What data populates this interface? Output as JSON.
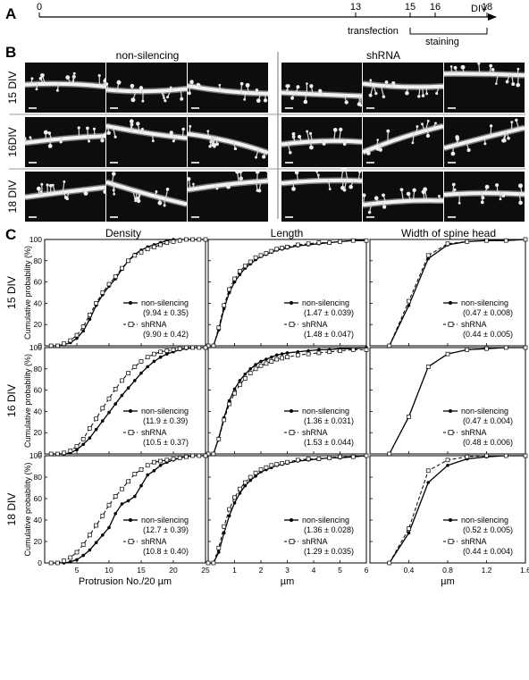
{
  "panels": {
    "a": "A",
    "b": "B",
    "c": "C"
  },
  "timeline": {
    "ticks": [
      "0",
      "13",
      "15",
      "16",
      "18"
    ],
    "unit": "DIV",
    "transfection_label": "transfection",
    "staining_label": "staining"
  },
  "micrographs": {
    "groups": [
      "non-silencing",
      "shRNA"
    ],
    "rows": [
      "15 DIV",
      "16DIV",
      "18 DIV"
    ]
  },
  "plots": {
    "columns": [
      "Density",
      "Length",
      "Width of spine head"
    ],
    "rows": [
      "15 DIV",
      "16 DIV",
      "18 DIV"
    ],
    "ylabel": "Cumulative probability (%)",
    "y_ticks": [
      "0",
      "20",
      "40",
      "60",
      "80",
      "100"
    ],
    "x_ticks": [
      [
        "5",
        "10",
        "15",
        "20",
        "25"
      ],
      [
        "1",
        "2",
        "3",
        "4",
        "5",
        "6"
      ],
      [
        "0.4",
        "0.8",
        "1.2",
        "1.6"
      ]
    ],
    "xlabels": [
      "Protrusion No./20 µm",
      "µm",
      "µm"
    ],
    "legend_names": [
      "non-silencing",
      "shRNA"
    ],
    "stats": [
      [
        [
          "(9.94 ± 0.35)",
          "(9.90 ± 0.42)"
        ],
        [
          "(1.47 ± 0.039)",
          "(1.48 ± 0.047)"
        ],
        [
          "(0.47 ± 0.008)",
          "(0.44 ± 0.005)"
        ]
      ],
      [
        [
          "(11.9 ± 0.39)",
          "(10.5 ± 0.37)"
        ],
        [
          "(1.36 ± 0.031)",
          "(1.53 ± 0.044)"
        ],
        [
          "(0.47 ± 0.004)",
          "(0.48 ± 0.006)"
        ]
      ],
      [
        [
          "(12.7 ± 0.39)",
          "(10.8 ± 0.40)"
        ],
        [
          "(1.36 ± 0.028)",
          "(1.29 ± 0.035)"
        ],
        [
          "(0.52 ± 0.005)",
          "(0.44 ± 0.004)"
        ]
      ]
    ]
  },
  "chart_data": [
    {
      "type": "line",
      "title": "Density",
      "row": "15 DIV",
      "xlabel": "",
      "ylabel": "Cumulative probability (%)",
      "xlim": [
        0,
        25
      ],
      "ylim": [
        0,
        100
      ],
      "series": [
        {
          "name": "non-silencing",
          "x": [
            1,
            2,
            3,
            4,
            5,
            6,
            7,
            8,
            9,
            10,
            11,
            12,
            13,
            14,
            15,
            16,
            17,
            18,
            19,
            20,
            21,
            22,
            23,
            24,
            25
          ],
          "y": [
            0,
            0,
            1,
            3,
            7,
            14,
            25,
            38,
            48,
            56,
            63,
            72,
            80,
            86,
            90,
            93,
            95,
            97,
            99,
            100,
            100,
            100,
            100,
            100,
            100
          ]
        },
        {
          "name": "shRNA",
          "x": [
            1,
            2,
            3,
            4,
            5,
            6,
            7,
            8,
            9,
            10,
            11,
            12,
            13,
            14,
            15,
            16,
            17,
            18,
            19,
            20,
            21,
            22,
            23,
            24,
            25
          ],
          "y": [
            0,
            0,
            2,
            5,
            10,
            18,
            29,
            40,
            50,
            58,
            65,
            73,
            80,
            85,
            88,
            91,
            93,
            95,
            97,
            98,
            99,
            100,
            100,
            100,
            100
          ]
        }
      ]
    },
    {
      "type": "line",
      "title": "Length",
      "row": "15 DIV",
      "xlabel": "",
      "ylabel": "",
      "xlim": [
        0,
        6
      ],
      "ylim": [
        0,
        100
      ],
      "series": [
        {
          "name": "non-silencing",
          "x": [
            0,
            0.2,
            0.4,
            0.6,
            0.8,
            1,
            1.2,
            1.4,
            1.6,
            1.8,
            2,
            2.2,
            2.4,
            2.6,
            2.8,
            3,
            3.4,
            3.8,
            4.2,
            4.6,
            5,
            5.5,
            6
          ],
          "y": [
            0,
            0,
            15,
            35,
            50,
            60,
            67,
            73,
            77,
            81,
            84,
            86,
            88,
            90,
            91,
            92,
            94,
            95,
            96,
            97,
            98,
            99,
            99
          ]
        },
        {
          "name": "shRNA",
          "x": [
            0,
            0.2,
            0.4,
            0.6,
            0.8,
            1,
            1.2,
            1.4,
            1.6,
            1.8,
            2,
            2.2,
            2.4,
            2.6,
            2.8,
            3,
            3.4,
            3.8,
            4.2,
            4.6,
            5,
            5.5,
            6
          ],
          "y": [
            0,
            0,
            17,
            38,
            53,
            63,
            70,
            75,
            79,
            83,
            85,
            87,
            89,
            91,
            92,
            93,
            95,
            96,
            97,
            97,
            98,
            99,
            99
          ]
        }
      ]
    },
    {
      "type": "line",
      "title": "Width of spine head",
      "row": "15 DIV",
      "xlabel": "",
      "ylabel": "",
      "xlim": [
        0,
        1.6
      ],
      "ylim": [
        0,
        100
      ],
      "series": [
        {
          "name": "non-silencing",
          "x": [
            0.2,
            0.4,
            0.6,
            0.8,
            1.0,
            1.2,
            1.4,
            1.6
          ],
          "y": [
            0,
            38,
            82,
            95,
            98,
            99,
            99,
            100
          ]
        },
        {
          "name": "shRNA",
          "x": [
            0.2,
            0.4,
            0.6,
            0.8,
            1.0,
            1.2,
            1.4,
            1.6
          ],
          "y": [
            0,
            42,
            85,
            96,
            98,
            99,
            99,
            100
          ]
        }
      ]
    },
    {
      "type": "line",
      "title": "",
      "row": "16 DIV",
      "xlabel": "",
      "ylabel": "Cumulative probability (%)",
      "xlim": [
        0,
        25
      ],
      "ylim": [
        0,
        100
      ],
      "series": [
        {
          "name": "non-silencing",
          "x": [
            1,
            2,
            3,
            4,
            5,
            6,
            7,
            8,
            9,
            10,
            11,
            12,
            13,
            14,
            15,
            16,
            17,
            18,
            19,
            20,
            21,
            22,
            23,
            24,
            25
          ],
          "y": [
            0,
            0,
            0,
            1,
            4,
            9,
            15,
            23,
            31,
            39,
            47,
            55,
            62,
            69,
            76,
            82,
            87,
            91,
            94,
            96,
            98,
            99,
            100,
            100,
            100
          ]
        },
        {
          "name": "shRNA",
          "x": [
            1,
            2,
            3,
            4,
            5,
            6,
            7,
            8,
            9,
            10,
            11,
            12,
            13,
            14,
            15,
            16,
            17,
            18,
            19,
            20,
            21,
            22,
            23,
            24,
            25
          ],
          "y": [
            0,
            0,
            1,
            3,
            7,
            14,
            24,
            33,
            43,
            52,
            61,
            69,
            76,
            82,
            87,
            91,
            94,
            96,
            97,
            98,
            99,
            100,
            100,
            100,
            100
          ]
        }
      ]
    },
    {
      "type": "line",
      "title": "",
      "row": "16 DIV",
      "xlabel": "",
      "ylabel": "",
      "xlim": [
        0,
        6
      ],
      "ylim": [
        0,
        100
      ],
      "series": [
        {
          "name": "non-silencing",
          "x": [
            0,
            0.2,
            0.4,
            0.6,
            0.8,
            1,
            1.2,
            1.4,
            1.6,
            1.8,
            2,
            2.2,
            2.4,
            2.6,
            2.8,
            3,
            3.4,
            3.8,
            4.2,
            4.6,
            5,
            5.5,
            6
          ],
          "y": [
            0,
            0,
            15,
            34,
            50,
            61,
            69,
            75,
            80,
            84,
            87,
            89,
            91,
            93,
            94,
            95,
            96,
            97,
            98,
            98,
            99,
            99,
            100
          ]
        },
        {
          "name": "shRNA",
          "x": [
            0,
            0.2,
            0.4,
            0.6,
            0.8,
            1,
            1.2,
            1.4,
            1.6,
            1.8,
            2,
            2.2,
            2.4,
            2.6,
            2.8,
            3,
            3.4,
            3.8,
            4.2,
            4.6,
            5,
            5.5,
            6
          ],
          "y": [
            0,
            0,
            14,
            32,
            47,
            57,
            65,
            71,
            76,
            80,
            83,
            85,
            87,
            89,
            90,
            91,
            93,
            94,
            95,
            96,
            97,
            98,
            98
          ]
        }
      ]
    },
    {
      "type": "line",
      "title": "",
      "row": "16 DIV",
      "xlabel": "",
      "ylabel": "",
      "xlim": [
        0,
        1.6
      ],
      "ylim": [
        0,
        100
      ],
      "series": [
        {
          "name": "non-silencing",
          "x": [
            0.2,
            0.4,
            0.6,
            0.8,
            1.0,
            1.2,
            1.4,
            1.6
          ],
          "y": [
            0,
            35,
            82,
            94,
            98,
            99,
            100,
            100
          ]
        },
        {
          "name": "shRNA",
          "x": [
            0.2,
            0.4,
            0.6,
            0.8,
            1.0,
            1.2,
            1.4,
            1.6
          ],
          "y": [
            0,
            35,
            82,
            94,
            98,
            99,
            100,
            100
          ]
        }
      ]
    },
    {
      "type": "line",
      "title": "",
      "row": "18 DIV",
      "xlabel": "Protrusion No./20 µm",
      "ylabel": "Cumulative probability (%)",
      "xlim": [
        0,
        25
      ],
      "ylim": [
        0,
        100
      ],
      "series": [
        {
          "name": "non-silencing",
          "x": [
            1,
            2,
            3,
            4,
            5,
            6,
            7,
            8,
            9,
            10,
            11,
            12,
            13,
            14,
            15,
            16,
            17,
            18,
            19,
            20,
            21,
            22,
            23,
            24,
            25
          ],
          "y": [
            0,
            0,
            0,
            1,
            3,
            7,
            12,
            19,
            26,
            33,
            46,
            55,
            58,
            62,
            72,
            82,
            86,
            91,
            94,
            96,
            98,
            99,
            100,
            100,
            100
          ]
        },
        {
          "name": "shRNA",
          "x": [
            1,
            2,
            3,
            4,
            5,
            6,
            7,
            8,
            9,
            10,
            11,
            12,
            13,
            14,
            15,
            16,
            17,
            18,
            19,
            20,
            21,
            22,
            23,
            24,
            25
          ],
          "y": [
            0,
            0,
            2,
            5,
            10,
            17,
            26,
            35,
            44,
            54,
            62,
            69,
            76,
            83,
            87,
            91,
            94,
            95,
            96,
            97,
            98,
            99,
            100,
            100,
            100
          ]
        }
      ]
    },
    {
      "type": "line",
      "title": "",
      "row": "18 DIV",
      "xlabel": "µm",
      "ylabel": "",
      "xlim": [
        0,
        6
      ],
      "ylim": [
        0,
        100
      ],
      "series": [
        {
          "name": "non-silencing",
          "x": [
            0,
            0.2,
            0.4,
            0.6,
            0.8,
            1,
            1.2,
            1.4,
            1.6,
            1.8,
            2,
            2.2,
            2.4,
            2.6,
            2.8,
            3,
            3.4,
            3.8,
            4.2,
            4.6,
            5,
            5.5,
            6
          ],
          "y": [
            0,
            0,
            10,
            28,
            44,
            56,
            65,
            72,
            77,
            81,
            85,
            87,
            89,
            91,
            92,
            93,
            95,
            96,
            97,
            98,
            98,
            99,
            100
          ]
        },
        {
          "name": "shRNA",
          "x": [
            0,
            0.2,
            0.4,
            0.6,
            0.8,
            1,
            1.2,
            1.4,
            1.6,
            1.8,
            2,
            2.2,
            2.4,
            2.6,
            2.8,
            3,
            3.4,
            3.8,
            4.2,
            4.6,
            5,
            5.5,
            6
          ],
          "y": [
            0,
            0,
            14,
            34,
            50,
            61,
            69,
            75,
            80,
            84,
            87,
            89,
            91,
            92,
            93,
            94,
            96,
            97,
            97,
            98,
            99,
            99,
            100
          ]
        }
      ]
    },
    {
      "type": "line",
      "title": "",
      "row": "18 DIV",
      "xlabel": "µm",
      "ylabel": "",
      "xlim": [
        0,
        1.6
      ],
      "ylim": [
        0,
        100
      ],
      "series": [
        {
          "name": "non-silencing",
          "x": [
            0.2,
            0.4,
            0.6,
            0.8,
            1.0,
            1.2,
            1.4,
            1.6
          ],
          "y": [
            0,
            28,
            75,
            91,
            97,
            99,
            100,
            100
          ]
        },
        {
          "name": "shRNA",
          "x": [
            0.2,
            0.4,
            0.6,
            0.8,
            1.0,
            1.2,
            1.4,
            1.6
          ],
          "y": [
            0,
            32,
            86,
            96,
            99,
            100,
            100,
            100
          ]
        }
      ]
    }
  ]
}
